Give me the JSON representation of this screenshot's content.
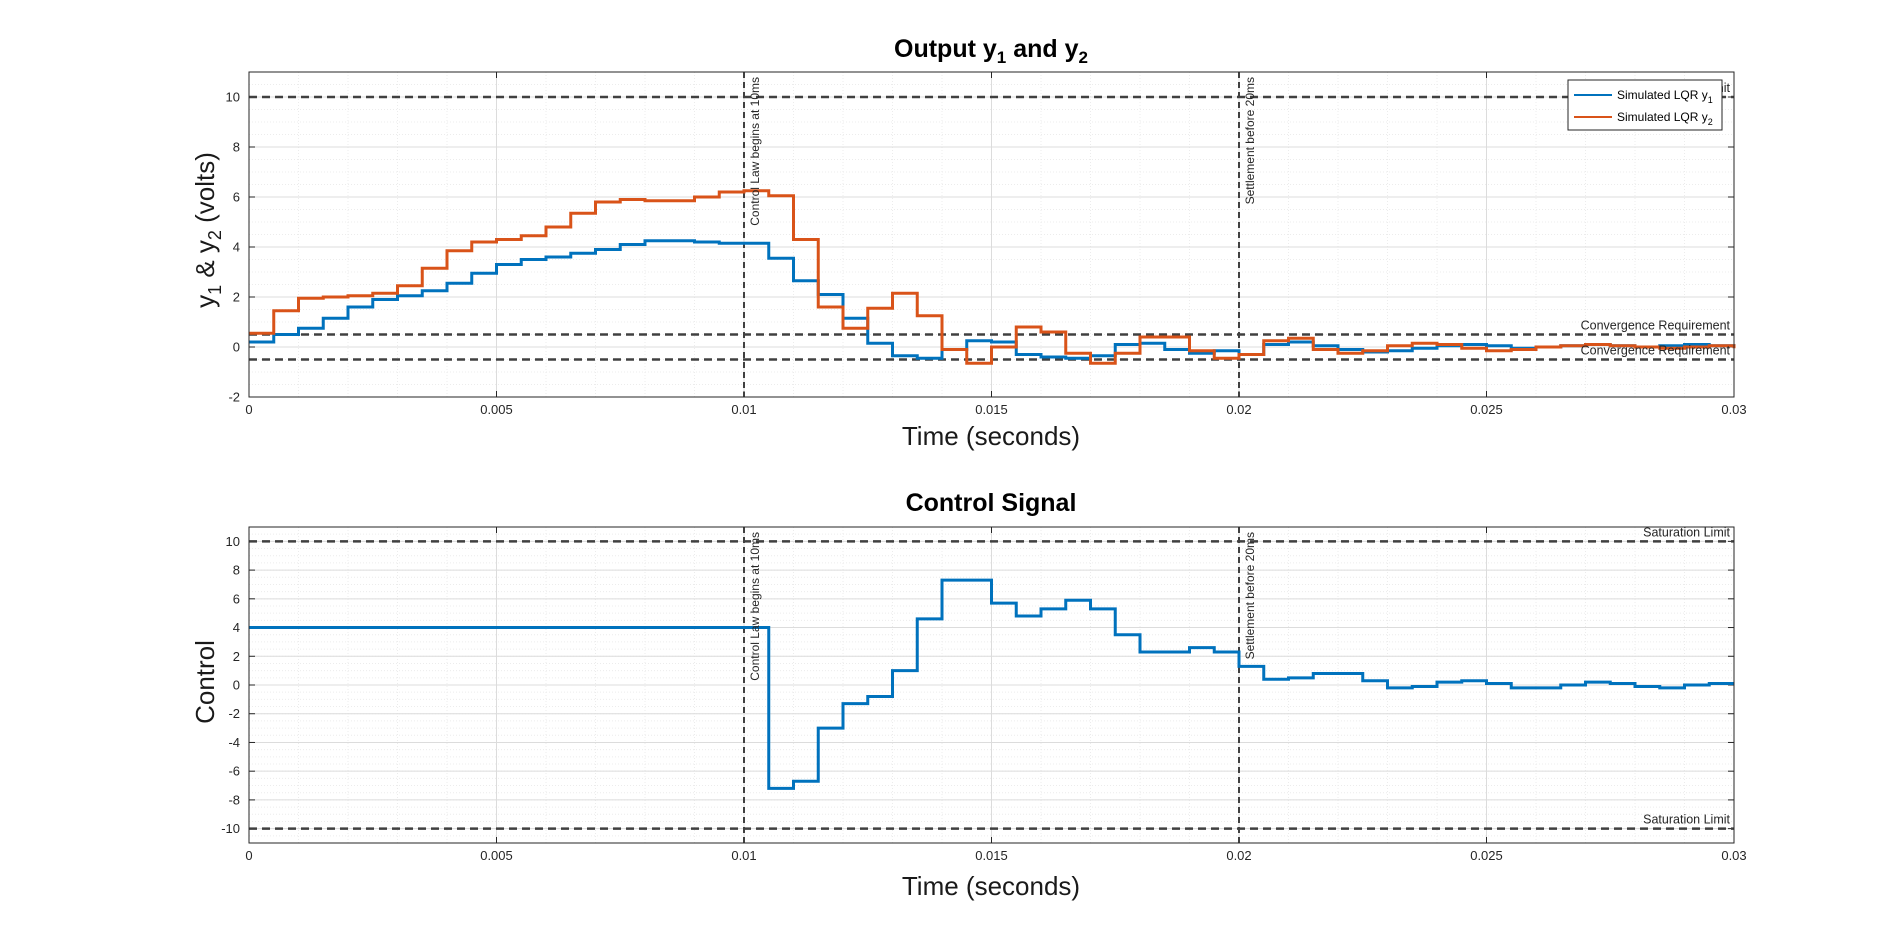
{
  "colors": {
    "y1": "#0072BD",
    "y2": "#D95319",
    "reference": "#404040",
    "grid_major": "#dcdcdc",
    "grid_minor": "#ececec"
  },
  "chart_data": [
    {
      "type": "line",
      "step": true,
      "title_main": "Output y",
      "title_sub1": "1",
      "title_mid": " and y",
      "title_sub2": "2",
      "xlabel": "Time (seconds)",
      "ylabel_parts": {
        "a": "y",
        "a_sub": "1",
        "mid": " & y",
        "b_sub": "2",
        "end": " (volts)"
      },
      "xlim": [
        0,
        0.03
      ],
      "ylim": [
        -2,
        11
      ],
      "x_ticks": [
        "0",
        "0.005",
        "0.01",
        "0.015",
        "0.02",
        "0.025",
        "0.03"
      ],
      "x_tick_values": [
        0,
        0.005,
        0.01,
        0.015,
        0.02,
        0.025,
        0.03
      ],
      "y_ticks": [
        "-2",
        "0",
        "2",
        "4",
        "6",
        "8",
        "10"
      ],
      "y_tick_values": [
        -2,
        0,
        2,
        4,
        6,
        8,
        10
      ],
      "grid": true,
      "minor_grid": true,
      "legend": {
        "position": "top-right",
        "entries": [
          {
            "name": "Simulated LQR y",
            "sub": "1",
            "series": 0
          },
          {
            "name": "Simulated LQR y",
            "sub": "2",
            "series": 1
          }
        ]
      },
      "h_lines": [
        {
          "y": 10,
          "label": "Saturation Limit"
        },
        {
          "y": 0.5,
          "label": "Convergence Requirement"
        },
        {
          "y": -0.5,
          "label": "Convergence Requirement"
        }
      ],
      "v_lines": [
        {
          "x": 0.01,
          "label": "Control Law begins at 10ms"
        },
        {
          "x": 0.02,
          "label": "Settlement before 20ms"
        }
      ],
      "sample_time": 0.0005,
      "series": [
        {
          "key": "y1",
          "values": [
            0.2,
            0.5,
            0.75,
            1.15,
            1.6,
            1.9,
            2.05,
            2.25,
            2.55,
            2.95,
            3.3,
            3.5,
            3.6,
            3.75,
            3.9,
            4.1,
            4.25,
            4.25,
            4.2,
            4.15,
            4.15,
            3.55,
            2.65,
            2.1,
            1.15,
            0.15,
            -0.35,
            -0.45,
            -0.1,
            0.25,
            0.2,
            -0.3,
            -0.4,
            -0.45,
            -0.35,
            0.1,
            0.15,
            -0.1,
            -0.25,
            -0.15,
            -0.3,
            0.1,
            0.2,
            0.05,
            -0.1,
            -0.2,
            -0.15,
            -0.05,
            0.05,
            0.1,
            0.05,
            -0.05,
            0.0,
            0.05,
            0.1,
            0.05,
            0.0,
            0.05,
            0.1,
            0.05,
            0.0
          ]
        },
        {
          "key": "y2",
          "values": [
            0.55,
            1.45,
            1.95,
            2.0,
            2.05,
            2.15,
            2.45,
            3.15,
            3.85,
            4.2,
            4.3,
            4.45,
            4.8,
            5.35,
            5.8,
            5.9,
            5.85,
            5.85,
            6.0,
            6.2,
            6.25,
            6.05,
            4.3,
            1.6,
            0.75,
            1.55,
            2.15,
            1.25,
            -0.1,
            -0.65,
            0.0,
            0.8,
            0.6,
            -0.25,
            -0.65,
            -0.25,
            0.4,
            0.4,
            -0.15,
            -0.45,
            -0.3,
            0.25,
            0.35,
            -0.1,
            -0.25,
            -0.15,
            0.05,
            0.15,
            0.1,
            -0.05,
            -0.15,
            -0.1,
            0.0,
            0.05,
            0.1,
            0.05,
            0.0,
            -0.05,
            0.0,
            0.05,
            -0.05
          ]
        }
      ]
    },
    {
      "type": "line",
      "step": true,
      "title": "Control Signal",
      "xlabel": "Time (seconds)",
      "ylabel": "Control",
      "xlim": [
        0,
        0.03
      ],
      "ylim": [
        -11,
        11
      ],
      "x_ticks": [
        "0",
        "0.005",
        "0.01",
        "0.015",
        "0.02",
        "0.025",
        "0.03"
      ],
      "x_tick_values": [
        0,
        0.005,
        0.01,
        0.015,
        0.02,
        0.025,
        0.03
      ],
      "y_ticks": [
        "-10",
        "-8",
        "-6",
        "-4",
        "-2",
        "0",
        "2",
        "4",
        "6",
        "8",
        "10"
      ],
      "y_tick_values": [
        -10,
        -8,
        -6,
        -4,
        -2,
        0,
        2,
        4,
        6,
        8,
        10
      ],
      "grid": true,
      "minor_grid": true,
      "h_lines": [
        {
          "y": 10,
          "label": "Saturation Limit"
        },
        {
          "y": -10,
          "label": "Saturation Limit"
        }
      ],
      "v_lines": [
        {
          "x": 0.01,
          "label": "Control Law begins at 10ms"
        },
        {
          "x": 0.02,
          "label": "Settlement before 20ms"
        }
      ],
      "sample_time": 0.0005,
      "series": [
        {
          "key": "y1",
          "values": [
            4,
            4,
            4,
            4,
            4,
            4,
            4,
            4,
            4,
            4,
            4,
            4,
            4,
            4,
            4,
            4,
            4,
            4,
            4,
            4,
            4,
            -7.2,
            -6.7,
            -3.0,
            -1.3,
            -0.8,
            1.0,
            4.6,
            7.3,
            7.3,
            5.7,
            4.8,
            5.3,
            5.9,
            5.3,
            3.5,
            2.3,
            2.3,
            2.6,
            2.3,
            1.3,
            0.4,
            0.5,
            0.8,
            0.8,
            0.3,
            -0.2,
            -0.1,
            0.2,
            0.3,
            0.1,
            -0.2,
            -0.2,
            0.0,
            0.2,
            0.1,
            -0.1,
            -0.2,
            0.0,
            0.1,
            0.1
          ]
        }
      ]
    }
  ]
}
